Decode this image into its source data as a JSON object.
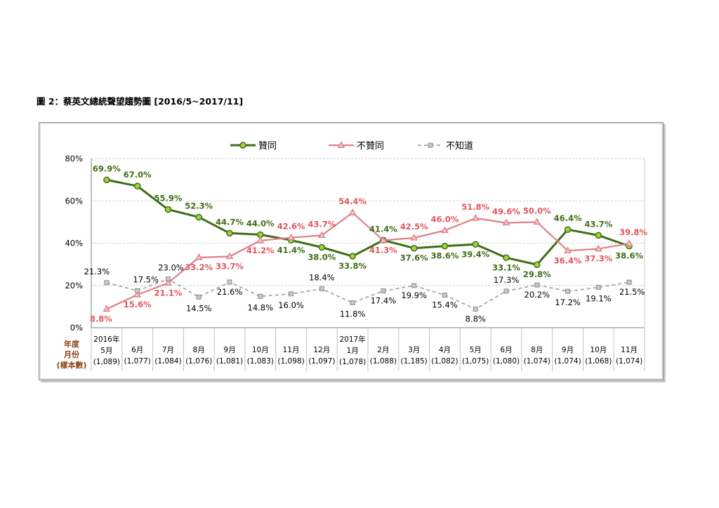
{
  "title": "圖 2：蔡英文總統聲望趨勢圖 [2016/5~2017/11]",
  "chart_data": {
    "type": "line",
    "categories": [
      "5月",
      "6月",
      "7月",
      "8月",
      "9月",
      "10月",
      "11月",
      "12月",
      "1月",
      "2月",
      "3月",
      "4月",
      "5月",
      "6月",
      "8月",
      "9月",
      "10月",
      "11月"
    ],
    "sample_sizes": [
      "(1,089)",
      "(1,077)",
      "(1,084)",
      "(1,076)",
      "(1,081)",
      "(1,083)",
      "(1,098)",
      "(1,097)",
      "(1,078)",
      "(1,088)",
      "(1,185)",
      "(1,082)",
      "(1,075)",
      "(1,080)",
      "(1,074)",
      "(1,074)",
      "(1,068)",
      "(1,074)"
    ],
    "year_labels": [
      {
        "index": 0,
        "text": "2016年"
      },
      {
        "index": 8,
        "text": "2017年"
      }
    ],
    "row_labels": [
      "年度",
      "月份",
      "(樣本數)"
    ],
    "yticks": [
      "0%",
      "20%",
      "40%",
      "60%",
      "80%"
    ],
    "ylim": [
      0,
      80
    ],
    "grid": true,
    "legend_position": "top",
    "series": [
      {
        "name": "贊同",
        "color": "#3f6e18",
        "marker_color": "#a3d33b",
        "values": [
          69.9,
          67.0,
          55.9,
          52.3,
          44.7,
          44.0,
          41.4,
          38.0,
          33.8,
          41.4,
          37.6,
          38.6,
          39.4,
          33.1,
          29.8,
          46.4,
          43.7,
          38.6
        ],
        "labels": [
          "69.9%",
          "67.0%",
          "55.9%",
          "52.3%",
          "44.7%",
          "44.0%",
          "41.4%",
          "38.0%",
          "33.8%",
          "41.4%",
          "37.6%",
          "38.6%",
          "39.4%",
          "33.1%",
          "29.8%",
          "46.4%",
          "43.7%",
          "38.6%"
        ]
      },
      {
        "name": "不贊同",
        "color": "#e08085",
        "marker_color": "#f2c8ca",
        "values": [
          8.8,
          15.6,
          21.1,
          33.2,
          33.7,
          41.2,
          42.6,
          43.7,
          54.4,
          41.3,
          42.5,
          46.0,
          51.8,
          49.6,
          50.0,
          36.4,
          37.3,
          39.8
        ],
        "labels": [
          "8.8%",
          "15.6%",
          "21.1%",
          "33.2%",
          "33.7%",
          "41.2%",
          "42.6%",
          "43.7%",
          "54.4%",
          "41.3%",
          "42.5%",
          "46.0%",
          "51.8%",
          "49.6%",
          "50.0%",
          "36.4%",
          "37.3%",
          "39.8%"
        ]
      },
      {
        "name": "不知道",
        "color": "#a6a6a6",
        "marker_color": "#c8c8c8",
        "values": [
          21.3,
          17.5,
          23.0,
          14.5,
          21.6,
          14.8,
          16.0,
          18.4,
          11.8,
          17.4,
          19.9,
          15.4,
          8.8,
          17.3,
          20.2,
          17.2,
          19.1,
          21.5
        ],
        "labels": [
          "21.3%",
          "17.5%",
          "23.0%",
          "14.5%",
          "21.6%",
          "14.8%",
          "16.0%",
          "18.4%",
          "11.8%",
          "17.4%",
          "19.9%",
          "15.4%",
          "8.8%",
          "17.3%",
          "20.2%",
          "17.2%",
          "19.1%",
          "21.5%"
        ]
      }
    ]
  }
}
